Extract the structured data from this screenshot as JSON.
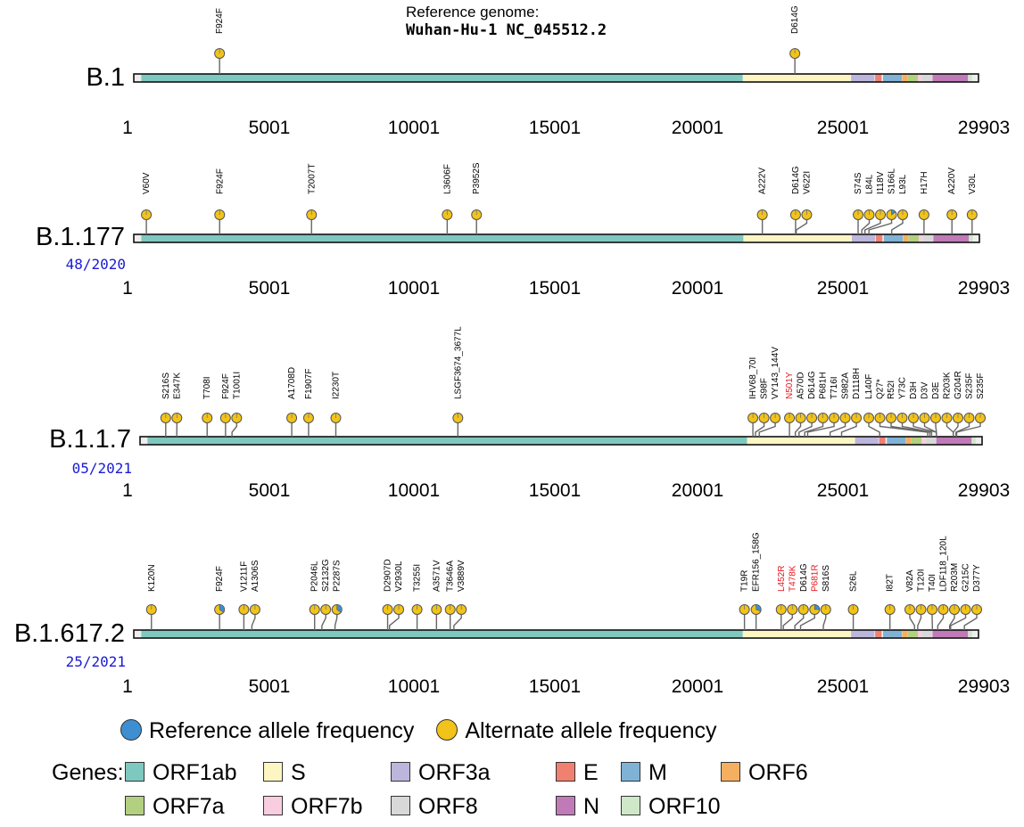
{
  "reference": {
    "line1": "Reference genome:",
    "line2": "Wuhan-Hu-1 NC_045512.2"
  },
  "genome": {
    "min": 1,
    "max": 29903,
    "ticks": [
      "1",
      "5001",
      "10001",
      "15001",
      "20001",
      "25001",
      "29903"
    ]
  },
  "colors": {
    "alt": "#f2c318",
    "ref": "#3d8fd1",
    "week": "#1a1ad6",
    "ORF1ab": "#7ec8bf",
    "S": "#fdf6c3",
    "ORF3a": "#bcb6dd",
    "E": "#f08070",
    "M": "#80b2d6",
    "ORF6": "#f4b060",
    "ORF7a": "#b2d080",
    "ORF7b": "#f8cde0",
    "ORF8": "#d8d8d8",
    "N": "#c07ab8",
    "ORF10": "#cfe8c8"
  },
  "genes": [
    {
      "name": "ORF1ab",
      "start": 266,
      "end": 21555
    },
    {
      "name": "S",
      "start": 21563,
      "end": 25384
    },
    {
      "name": "ORF3a",
      "start": 25393,
      "end": 26220
    },
    {
      "name": "E",
      "start": 26245,
      "end": 26472
    },
    {
      "name": "M",
      "start": 26523,
      "end": 27191
    },
    {
      "name": "ORF6",
      "start": 27202,
      "end": 27387
    },
    {
      "name": "ORF7a",
      "start": 27394,
      "end": 27759
    },
    {
      "name": "ORF7b",
      "start": 27756,
      "end": 27887
    },
    {
      "name": "ORF8",
      "start": 27894,
      "end": 28259
    },
    {
      "name": "N",
      "start": 28274,
      "end": 29533
    },
    {
      "name": "ORF10",
      "start": 29558,
      "end": 29674
    }
  ],
  "legend": {
    "ref_label": "Reference allele frequency",
    "alt_label": "Alternate allele frequency",
    "genes_label": "Genes:",
    "gene_items": [
      "ORF1ab",
      "S",
      "ORF3a",
      "E",
      "M",
      "ORF6",
      "ORF7a",
      "ORF7b",
      "ORF8",
      "N",
      "ORF10"
    ]
  },
  "lineages": [
    {
      "name": "B.1",
      "week": "",
      "mutations": [
        {
          "pos": 3037,
          "label": "F924F",
          "ref": 0.0
        },
        {
          "pos": 23403,
          "label": "D614G",
          "ref": 0.0
        }
      ]
    },
    {
      "name": "B.1.177",
      "week": "48/2020",
      "mutations": [
        {
          "pos": 445,
          "label": "V60V",
          "ref": 0.0
        },
        {
          "pos": 3037,
          "label": "F924F",
          "ref": 0.0
        },
        {
          "pos": 6286,
          "label": "T2007T",
          "ref": 0.0
        },
        {
          "pos": 11083,
          "label": "L3606F",
          "ref": 0.0
        },
        {
          "pos": 12120,
          "label": "P3952S",
          "ref": 0.0
        },
        {
          "pos": 22227,
          "label": "A222V",
          "ref": 0.0
        },
        {
          "pos": 23403,
          "label": "D614G",
          "ref": 0.0
        },
        {
          "pos": 23426,
          "label": "V622I",
          "ref": 0.0
        },
        {
          "pos": 25614,
          "label": "S74S",
          "ref": 0.0
        },
        {
          "pos": 25744,
          "label": "L84L",
          "ref": 0.0
        },
        {
          "pos": 25856,
          "label": "I118V",
          "ref": 0.0
        },
        {
          "pos": 25998,
          "label": "S166L",
          "ref": 0.15
        },
        {
          "pos": 26801,
          "label": "L93L",
          "ref": 0.0
        },
        {
          "pos": 27944,
          "label": "H17H",
          "ref": 0.0
        },
        {
          "pos": 28932,
          "label": "A220V",
          "ref": 0.0
        },
        {
          "pos": 29645,
          "label": "V30L",
          "ref": 0.0
        }
      ]
    },
    {
      "name": "B.1.1.7",
      "week": "05/2021",
      "mutations": [
        {
          "pos": 913,
          "label": "S216S",
          "ref": 0.0
        },
        {
          "pos": 1305,
          "label": "E347K",
          "ref": 0.0
        },
        {
          "pos": 2384,
          "label": "T708I",
          "ref": 0.0
        },
        {
          "pos": 3037,
          "label": "F924F",
          "ref": 0.0
        },
        {
          "pos": 3267,
          "label": "T1001I",
          "ref": 0.0
        },
        {
          "pos": 5388,
          "label": "A1708D",
          "ref": 0.0
        },
        {
          "pos": 5986,
          "label": "F1907F",
          "ref": 0.0
        },
        {
          "pos": 6954,
          "label": "I2230T",
          "ref": 0.0
        },
        {
          "pos": 11288,
          "label": "LSGF3674_3677L",
          "ref": 0.0
        },
        {
          "pos": 21765,
          "label": "IHV68_70I",
          "ref": 0.0
        },
        {
          "pos": 21855,
          "label": "S98F",
          "ref": 0.0
        },
        {
          "pos": 21991,
          "label": "VY143_144V",
          "ref": 0.0
        },
        {
          "pos": 23063,
          "label": "N501Y",
          "ref": 0.0,
          "highlight": true
        },
        {
          "pos": 23271,
          "label": "A570D",
          "ref": 0.0
        },
        {
          "pos": 23403,
          "label": "D614G",
          "ref": 0.0
        },
        {
          "pos": 23604,
          "label": "P681H",
          "ref": 0.0
        },
        {
          "pos": 23709,
          "label": "T716I",
          "ref": 0.0
        },
        {
          "pos": 24506,
          "label": "S982A",
          "ref": 0.0
        },
        {
          "pos": 24914,
          "label": "D1118H",
          "ref": 0.0
        },
        {
          "pos": 26267,
          "label": "L140F",
          "ref": 0.0
        },
        {
          "pos": 27972,
          "label": "Q27*",
          "ref": 0.0
        },
        {
          "pos": 28048,
          "label": "R52I",
          "ref": 0.0
        },
        {
          "pos": 28111,
          "label": "Y73C",
          "ref": 0.0
        },
        {
          "pos": 28280,
          "label": "D3H",
          "ref": 0.0
        },
        {
          "pos": 28281,
          "label": "D3V",
          "ref": 0.0
        },
        {
          "pos": 28282,
          "label": "D3E",
          "ref": 0.0
        },
        {
          "pos": 28881,
          "label": "R203K",
          "ref": 0.0
        },
        {
          "pos": 28883,
          "label": "G204R",
          "ref": 0.0
        },
        {
          "pos": 28977,
          "label": "S235F",
          "ref": 0.0
        },
        {
          "pos": 29000,
          "label": "S235F",
          "ref": 0.0
        }
      ]
    },
    {
      "name": "B.1.617.2",
      "week": "25/2021",
      "mutations": [
        {
          "pos": 625,
          "label": "K120N",
          "ref": 0.0
        },
        {
          "pos": 3037,
          "label": "F924F",
          "ref": 0.35
        },
        {
          "pos": 3897,
          "label": "V1211F",
          "ref": 0.0
        },
        {
          "pos": 4181,
          "label": "A1306S",
          "ref": 0.0
        },
        {
          "pos": 6402,
          "label": "P2046L",
          "ref": 0.0
        },
        {
          "pos": 6660,
          "label": "S2132G",
          "ref": 0.0
        },
        {
          "pos": 7124,
          "label": "P2287S",
          "ref": 0.35
        },
        {
          "pos": 8986,
          "label": "D2907D",
          "ref": 0.0
        },
        {
          "pos": 9053,
          "label": "V2930L",
          "ref": 0.0
        },
        {
          "pos": 10029,
          "label": "T3255I",
          "ref": 0.0
        },
        {
          "pos": 10716,
          "label": "A3571V",
          "ref": 0.0
        },
        {
          "pos": 11201,
          "label": "T3646A",
          "ref": 0.0
        },
        {
          "pos": 11332,
          "label": "V3889V",
          "ref": 0.0
        },
        {
          "pos": 21618,
          "label": "T19R",
          "ref": 0.0
        },
        {
          "pos": 22029,
          "label": "EFR156_158G",
          "ref": 0.3
        },
        {
          "pos": 22917,
          "label": "L452R",
          "ref": 0.0,
          "highlight": true
        },
        {
          "pos": 22995,
          "label": "T478K",
          "ref": 0.0,
          "highlight": true
        },
        {
          "pos": 23403,
          "label": "D614G",
          "ref": 0.0
        },
        {
          "pos": 23604,
          "label": "P681R",
          "ref": 0.25,
          "highlight": true
        },
        {
          "pos": 24410,
          "label": "S816S",
          "ref": 0.0
        },
        {
          "pos": 25469,
          "label": "S26L",
          "ref": 0.0
        },
        {
          "pos": 26767,
          "label": "I82T",
          "ref": 0.0
        },
        {
          "pos": 27638,
          "label": "V82A",
          "ref": 0.0
        },
        {
          "pos": 27752,
          "label": "T120I",
          "ref": 0.0
        },
        {
          "pos": 28270,
          "label": "T40I",
          "ref": 0.0
        },
        {
          "pos": 28461,
          "label": "LDF118_120L",
          "ref": 0.0
        },
        {
          "pos": 28881,
          "label": "R203M",
          "ref": 0.0
        },
        {
          "pos": 28916,
          "label": "G215C",
          "ref": 0.0
        },
        {
          "pos": 29402,
          "label": "D377Y",
          "ref": 0.0
        }
      ]
    }
  ]
}
